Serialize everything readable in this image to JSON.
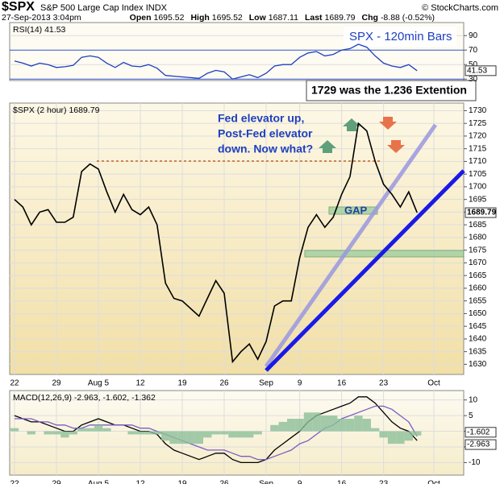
{
  "header": {
    "symbol": "$SPX",
    "name": "S&P 500 Large Cap Index",
    "exchange": "INDX",
    "credit": "© StockCharts.com",
    "timestamp": "27-Sep-2013 3:04pm",
    "quotes": [
      {
        "label": "Open",
        "value": 1695.52
      },
      {
        "label": "High",
        "value": 1695.52
      },
      {
        "label": "Low",
        "value": 1687.11
      },
      {
        "label": "Last",
        "value": 1689.79
      },
      {
        "label": "Chg",
        "value": "-8.88 (-0.52%)"
      }
    ]
  },
  "annotations": {
    "title_box": "SPX - 120min Bars",
    "extension_note": "1729 was the 1.236 Extention",
    "fed_note": [
      "Fed elevator up,",
      "Post-Fed elevator",
      "down. Now what?"
    ],
    "gap": "GAP"
  },
  "chart_data": [
    {
      "type": "line",
      "title": "RSI(14) 41.53",
      "ylim": [
        28,
        108
      ],
      "yticks": [
        30,
        50,
        70,
        90
      ],
      "series": [
        {
          "color": "#1f3fbf",
          "values": [
            55,
            52,
            48,
            52,
            50,
            46,
            47,
            49,
            60,
            62,
            60,
            52,
            46,
            53,
            48,
            47,
            50,
            45,
            35,
            34,
            33,
            32,
            31,
            38,
            42,
            40,
            30,
            33,
            36,
            32,
            38,
            48,
            50,
            50,
            60,
            66,
            68,
            62,
            64,
            70,
            72,
            78,
            74,
            62,
            52,
            48,
            46,
            50,
            41.53,
            null,
            null
          ]
        }
      ]
    },
    {
      "type": "line",
      "title": "$SPX (2 hour) 1689.79",
      "ylim": [
        1626,
        1733
      ],
      "yticks": [
        1630,
        1635,
        1640,
        1645,
        1650,
        1655,
        1660,
        1665,
        1670,
        1675,
        1680,
        1685,
        1690,
        1695,
        1700,
        1705,
        1710,
        1715,
        1720,
        1725,
        1730
      ],
      "categories": [
        "22",
        null,
        null,
        null,
        null,
        "29",
        null,
        null,
        null,
        null,
        "Aug 5",
        null,
        null,
        null,
        null,
        "12",
        null,
        null,
        null,
        null,
        "19",
        null,
        null,
        null,
        null,
        "26",
        null,
        null,
        null,
        null,
        "Sep",
        null,
        null,
        null,
        "9",
        null,
        null,
        null,
        null,
        "16",
        null,
        null,
        null,
        null,
        "23",
        null,
        null,
        null,
        null,
        null,
        "Oct"
      ],
      "series": [
        {
          "color": "#000000",
          "values": [
            1695,
            1692,
            1685,
            1690,
            1691,
            1686,
            1686,
            1688,
            1706,
            1709,
            1707,
            1698,
            1690,
            1697,
            1691,
            1689,
            1692,
            1685,
            1662,
            1656,
            1655,
            1652,
            1649,
            1656,
            1663,
            1658,
            1631,
            1635,
            1638,
            1632,
            1639,
            1653,
            1655,
            1655,
            1672,
            1684,
            1689,
            1684,
            1688,
            1697,
            1704,
            1725,
            1722,
            1710,
            1701,
            1697,
            1692,
            1698,
            1689.79,
            null,
            null
          ]
        }
      ]
    },
    {
      "type": "line",
      "title": "MACD(12,26,9) -2.963, -1.602, -1.362",
      "ylim": [
        -14,
        13
      ],
      "yticks": [
        -10,
        -5,
        0,
        5,
        10
      ],
      "categories": [
        "22",
        null,
        null,
        null,
        null,
        "29",
        null,
        null,
        null,
        null,
        "Aug 5",
        null,
        null,
        null,
        null,
        "12",
        null,
        null,
        null,
        null,
        "19",
        null,
        null,
        null,
        null,
        "26",
        null,
        null,
        null,
        null,
        "Sep",
        null,
        null,
        null,
        "9",
        null,
        null,
        null,
        null,
        "16",
        null,
        null,
        null,
        null,
        "23",
        null,
        null,
        null,
        null,
        null,
        "Oct"
      ],
      "series": [
        {
          "color": "#000000",
          "kind": "line",
          "values": [
            5,
            4,
            3,
            3,
            2,
            1,
            0,
            0,
            2,
            3,
            4,
            3,
            2,
            2,
            1,
            0,
            0,
            -1,
            -4,
            -6,
            -7,
            -8,
            -9,
            -8,
            -7,
            -7,
            -9,
            -10,
            -10,
            -10,
            -9,
            -6,
            -4,
            -2,
            0,
            3,
            5,
            6,
            7,
            8,
            9,
            11,
            11,
            9,
            6,
            3,
            1,
            0,
            -2.963,
            null,
            null
          ]
        },
        {
          "color": "#7a5cc8",
          "kind": "line",
          "values": [
            4,
            4,
            4,
            3,
            3,
            2,
            2,
            1,
            1,
            2,
            2,
            2,
            2,
            2,
            2,
            1,
            1,
            0,
            -1,
            -2,
            -3,
            -4,
            -5,
            -6,
            -6,
            -6,
            -7,
            -8,
            -8,
            -9,
            -9,
            -8,
            -7,
            -6,
            -4,
            -3,
            -1,
            1,
            2,
            4,
            5,
            6,
            7,
            8,
            8,
            7,
            5,
            3,
            -1.602,
            null,
            null
          ]
        },
        {
          "color": "#8cbf9a",
          "kind": "bar",
          "values": [
            1,
            0,
            -1,
            0,
            -1,
            -1,
            -2,
            -1,
            1,
            1,
            2,
            1,
            0,
            0,
            -1,
            -1,
            -1,
            -1,
            -3,
            -4,
            -4,
            -4,
            -4,
            -2,
            -1,
            -1,
            -2,
            -2,
            -2,
            -1,
            0,
            2,
            3,
            4,
            4,
            6,
            6,
            5,
            5,
            4,
            4,
            5,
            4,
            1,
            -2,
            -4,
            -4,
            -3,
            -1.362,
            null,
            null
          ]
        }
      ]
    }
  ]
}
